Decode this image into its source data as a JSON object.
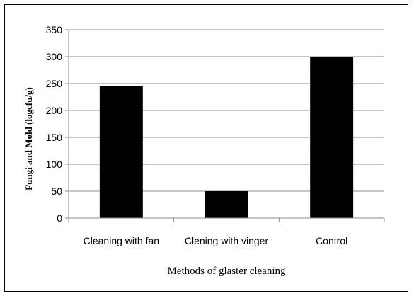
{
  "chart_data": {
    "type": "bar",
    "title": "",
    "categories": [
      "Cleaning with fan",
      "Clening with vinger",
      "Control"
    ],
    "values": [
      245,
      50,
      300
    ],
    "xlabel": "Methods of glaster cleaning",
    "ylabel": "Fungi and Mold (logcfu/g)",
    "ylim": [
      0,
      350
    ],
    "yticks": [
      0,
      50,
      100,
      150,
      200,
      250,
      300,
      350
    ],
    "grid": true,
    "legend": "none",
    "bar_color": "#000000",
    "grid_color": "#8c8c8c"
  }
}
